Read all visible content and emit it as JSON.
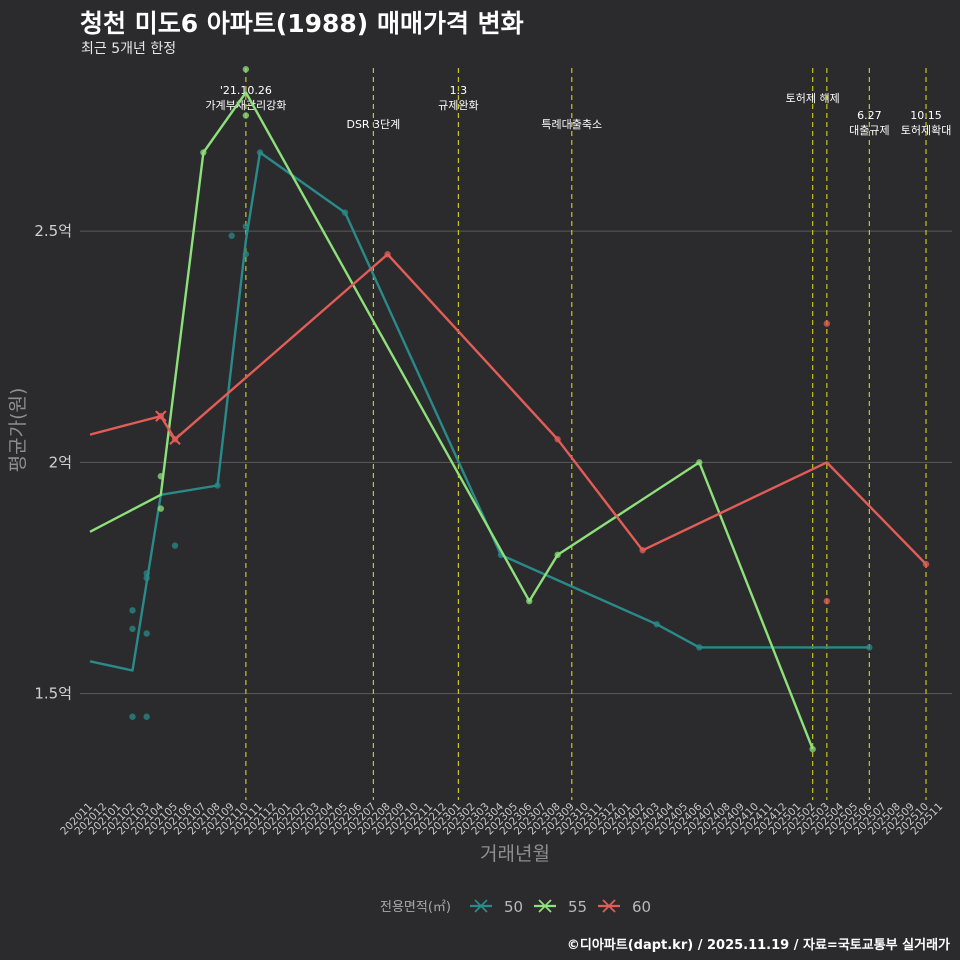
{
  "header": {
    "title": "청천 미도6 아파트(1988) 매매가격 변화",
    "subtitle": "최근 5개년 한정",
    "caption": "©디아파트(dapt.kr) / 2025.11.19 / 자료=국토교통부 실거래가"
  },
  "colors": {
    "background": "#2b2b2d",
    "grid": "#5a5a5a",
    "event_line": "#c6c61e",
    "s50": "#2a8a8a",
    "s55": "#8ee07a",
    "s60": "#e35d58"
  },
  "chart_data": {
    "type": "line",
    "title": "청천 미도6 아파트(1988) 매매가격 변화",
    "subtitle": "최근 5개년 한정",
    "xlabel": "거래년월",
    "ylabel": "평균가(원)",
    "ylim": [
      1.27,
      2.87
    ],
    "y_ticks": [
      {
        "value": 1.5,
        "label": "1.5억"
      },
      {
        "value": 2.0,
        "label": "2억"
      },
      {
        "value": 2.5,
        "label": "2.5억"
      }
    ],
    "categories": [
      "202011",
      "202012",
      "202101",
      "202102",
      "202103",
      "202104",
      "202105",
      "202106",
      "202107",
      "202108",
      "202109",
      "202110",
      "202111",
      "202112",
      "202201",
      "202202",
      "202203",
      "202204",
      "202205",
      "202206",
      "202207",
      "202208",
      "202209",
      "202210",
      "202211",
      "202212",
      "202301",
      "202302",
      "202303",
      "202304",
      "202305",
      "202306",
      "202307",
      "202308",
      "202309",
      "202310",
      "202311",
      "202312",
      "202401",
      "202402",
      "202403",
      "202404",
      "202405",
      "202406",
      "202407",
      "202408",
      "202409",
      "202410",
      "202411",
      "202412",
      "202501",
      "202502",
      "202503",
      "202504",
      "202505",
      "202506",
      "202507",
      "202508",
      "202509",
      "202510",
      "202511"
    ],
    "legend": {
      "title": "전용면적(㎡)",
      "position": "bottom"
    },
    "series": [
      {
        "name": "50",
        "color": "#2a8a8a",
        "line": [
          [
            "202011",
            1.57
          ],
          [
            "202102",
            1.55
          ],
          [
            "202104",
            1.93
          ],
          [
            "202108",
            1.95
          ],
          [
            "202110",
            2.48
          ],
          [
            "202111",
            2.67
          ],
          [
            "202205",
            2.54
          ],
          [
            "202304",
            1.8
          ],
          [
            "202403",
            1.65
          ],
          [
            "202406",
            1.6
          ],
          [
            "202506",
            1.6
          ]
        ],
        "points": [
          [
            "202102",
            1.45
          ],
          [
            "202102",
            1.64
          ],
          [
            "202102",
            1.68
          ],
          [
            "202103",
            1.45
          ],
          [
            "202103",
            1.63
          ],
          [
            "202103",
            1.75
          ],
          [
            "202103",
            1.76
          ],
          [
            "202105",
            1.82
          ],
          [
            "202108",
            1.95
          ],
          [
            "202109",
            2.49
          ],
          [
            "202110",
            2.45
          ],
          [
            "202110",
            2.51
          ],
          [
            "202111",
            2.67
          ],
          [
            "202205",
            2.54
          ],
          [
            "202304",
            1.8
          ],
          [
            "202403",
            1.65
          ],
          [
            "202406",
            1.6
          ],
          [
            "202506",
            1.6
          ]
        ]
      },
      {
        "name": "55",
        "color": "#8ee07a",
        "line": [
          [
            "202011",
            1.85
          ],
          [
            "202104",
            1.93
          ],
          [
            "202107",
            2.67
          ],
          [
            "202110",
            2.8
          ],
          [
            "202306",
            1.7
          ],
          [
            "202308",
            1.8
          ],
          [
            "202406",
            2.0
          ],
          [
            "202502",
            1.38
          ]
        ],
        "points": [
          [
            "202104",
            1.9
          ],
          [
            "202104",
            1.97
          ],
          [
            "202107",
            2.67
          ],
          [
            "202110",
            2.75
          ],
          [
            "202110",
            2.85
          ],
          [
            "202306",
            1.7
          ],
          [
            "202308",
            1.8
          ],
          [
            "202406",
            2.0
          ],
          [
            "202502",
            1.38
          ]
        ]
      },
      {
        "name": "60",
        "color": "#e35d58",
        "line": [
          [
            "202011",
            2.06
          ],
          [
            "202104",
            2.1
          ],
          [
            "202105",
            2.05
          ],
          [
            "202208",
            2.45
          ],
          [
            "202308",
            2.05
          ],
          [
            "202402",
            1.81
          ],
          [
            "202503",
            2.0
          ],
          [
            "202510",
            1.78
          ]
        ],
        "points": [
          [
            "202104",
            2.1
          ],
          [
            "202105",
            2.05
          ],
          [
            "202208",
            2.45
          ],
          [
            "202308",
            2.05
          ],
          [
            "202402",
            1.81
          ],
          [
            "202503",
            1.7
          ],
          [
            "202503",
            2.3
          ],
          [
            "202510",
            1.78
          ]
        ],
        "crosses": [
          [
            "202104",
            2.1
          ],
          [
            "202105",
            2.05
          ]
        ]
      }
    ],
    "events": [
      {
        "month": "202110",
        "lines": [
          "'21.10.26",
          "가계부채관리강화"
        ]
      },
      {
        "month": "202207",
        "lines": [
          "DSR 3단계"
        ]
      },
      {
        "month": "202301",
        "lines": [
          "1.3",
          "규제완화"
        ]
      },
      {
        "month": "202309",
        "lines": [
          "특례대출축소"
        ]
      },
      {
        "month": "202502",
        "lines": [
          "토허제 해제"
        ]
      },
      {
        "month": "202503",
        "lines": []
      },
      {
        "month": "202506",
        "lines": [
          "6.27",
          "대출규제"
        ]
      },
      {
        "month": "202510",
        "lines": [
          "10.15",
          "토허제확대"
        ]
      }
    ]
  }
}
